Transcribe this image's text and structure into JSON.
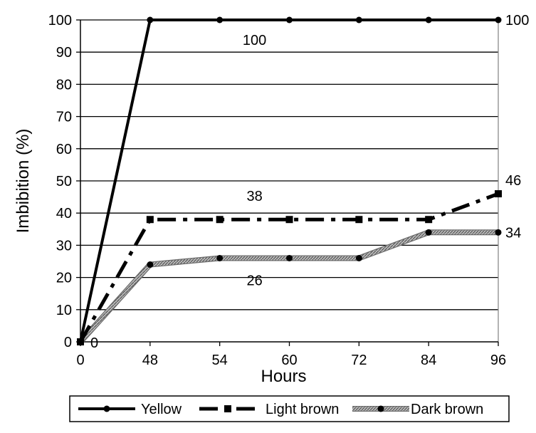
{
  "chart_data": {
    "type": "line",
    "title": "",
    "xlabel": "Hours",
    "ylabel": "Imbibition (%)",
    "categories": [
      "0",
      "48",
      "54",
      "60",
      "72",
      "84",
      "96"
    ],
    "ylim": [
      0,
      100
    ],
    "yticks": [
      0,
      10,
      20,
      30,
      40,
      50,
      60,
      70,
      80,
      90,
      100
    ],
    "grid": "horizontal",
    "legend_position": "bottom",
    "series": [
      {
        "name": "Yellow",
        "values": [
          0,
          100,
          100,
          100,
          100,
          100,
          100
        ],
        "color": "#000000",
        "style": "solid",
        "marker": "circle"
      },
      {
        "name": "Light brown",
        "values": [
          0,
          38,
          38,
          38,
          38,
          38,
          46
        ],
        "color": "#000000",
        "style": "dash-dot",
        "marker": "square"
      },
      {
        "name": "Dark brown",
        "values": [
          0,
          24,
          26,
          26,
          26,
          34,
          34
        ],
        "color": "#7a7a7a",
        "style": "hatched",
        "marker": "circle"
      }
    ],
    "annotations": [
      {
        "text": "100",
        "x": 2.5,
        "y": 100
      },
      {
        "text": "100",
        "x": 6,
        "y": 100
      },
      {
        "text": "38",
        "x": 2.5,
        "y": 38
      },
      {
        "text": "46",
        "x": 6,
        "y": 46
      },
      {
        "text": "26",
        "x": 2.5,
        "y": 26
      },
      {
        "text": "34",
        "x": 6,
        "y": 34
      },
      {
        "text": "0",
        "x": 0,
        "y": 0
      }
    ]
  }
}
